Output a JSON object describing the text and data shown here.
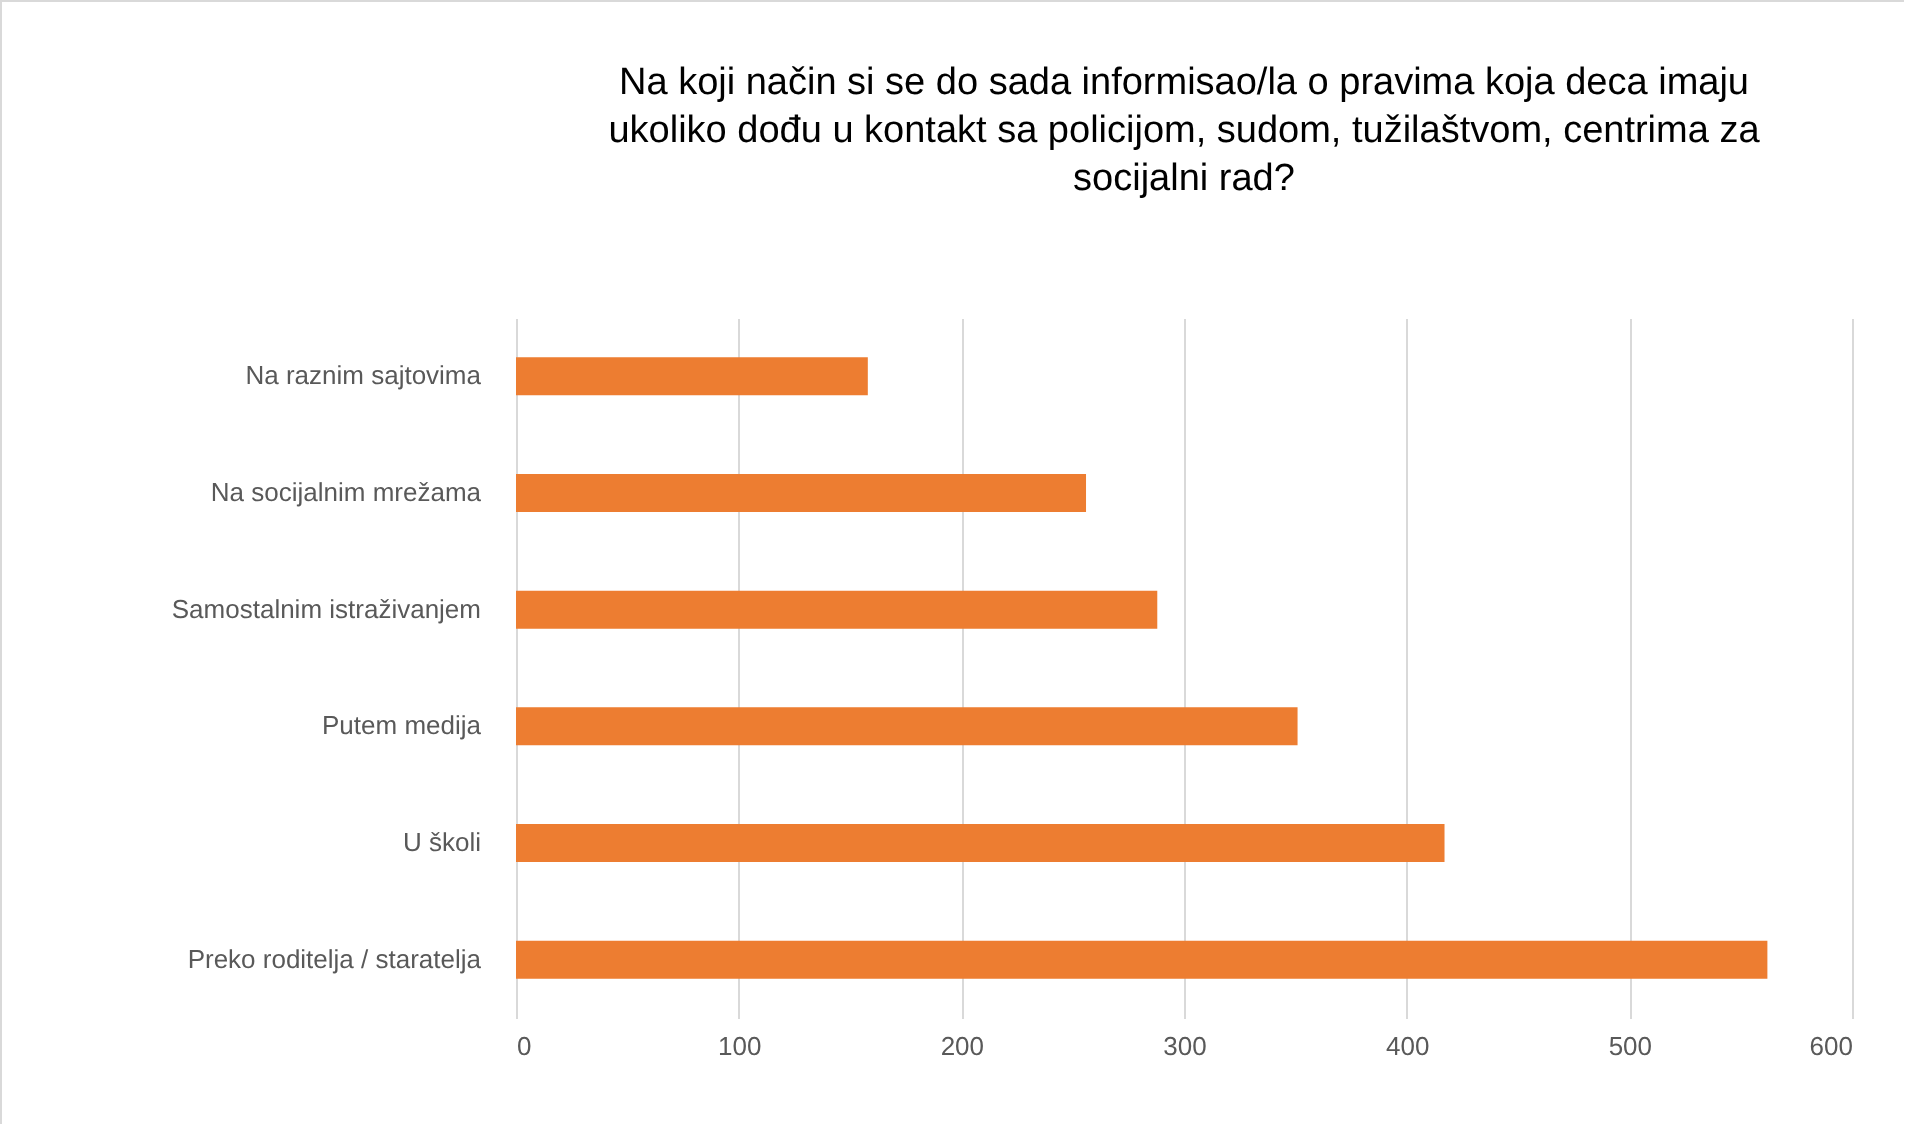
{
  "chart_data": {
    "type": "bar",
    "orientation": "horizontal",
    "title": "Na koji način si se do sada informisao/la o pravima koja deca imaju ukoliko dođu u kontakt sa policijom, sudom, tužilaštvom, centrima za socijalni rad?",
    "categories": [
      "Na raznim sajtovima",
      "Na socijalnim mrežama",
      "Samostalnim istraživanjem",
      "Putem medija",
      "U školi",
      "Preko roditelja / staratelja"
    ],
    "values": [
      158,
      256,
      288,
      351,
      417,
      562
    ],
    "color": "#ed7d31",
    "xlim": [
      0,
      600
    ],
    "xticks": [
      0,
      100,
      200,
      300,
      400,
      500,
      600
    ],
    "grid": "x"
  }
}
